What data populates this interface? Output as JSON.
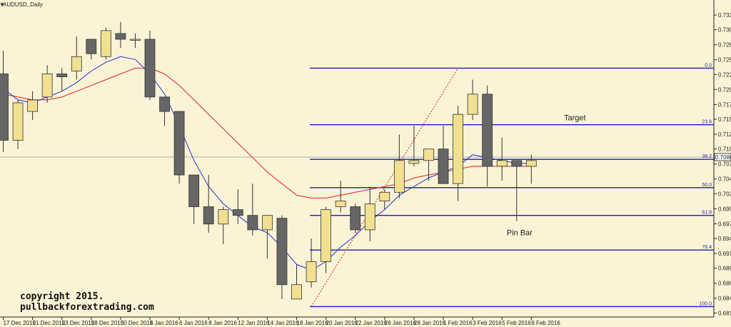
{
  "chart_data": {
    "type": "candlestick",
    "title": "AUDUSD,,Daily",
    "symbol_menu_marker": "▼",
    "ylim": [
      0.6809,
      0.7358
    ],
    "y_ticks": [
      0.7332,
      0.73065,
      0.72805,
      0.72545,
      0.7229,
      0.7203,
      0.7177,
      0.71515,
      0.71255,
      0.71,
      0.7074,
      0.7048,
      0.70225,
      0.69965,
      0.69705,
      0.6945,
      0.6919,
      0.68935,
      0.68675,
      0.68415,
      0.6816
    ],
    "y_tick_labels": [
      "0.73320",
      "0.73065",
      "0.72805",
      "0.72545",
      "0.72290",
      "0.72030",
      "0.71770",
      "0.71515",
      "0.71255",
      "0.71000",
      "0.70740",
      "0.70480",
      "0.70225",
      "0.69965",
      "0.69705",
      "0.69450",
      "0.69190",
      "0.68935",
      "0.68675",
      "0.68415",
      "0.68160"
    ],
    "current_price": 0.7086,
    "current_price_label": "0.70860",
    "x_tick_labels": [
      {
        "bar": 0,
        "label": "17 Dec 2015"
      },
      {
        "bar": 2,
        "label": "21 Dec 2015"
      },
      {
        "bar": 4,
        "label": "23 Dec 2015"
      },
      {
        "bar": 6,
        "label": "28 Dec 2015"
      },
      {
        "bar": 8,
        "label": "30 Dec 2015"
      },
      {
        "bar": 10,
        "label": "4 Jan 2016"
      },
      {
        "bar": 12,
        "label": "6 Jan 2016"
      },
      {
        "bar": 14,
        "label": "8 Jan 2016"
      },
      {
        "bar": 16,
        "label": "12 Jan 2016"
      },
      {
        "bar": 18,
        "label": "14 Jan 2016"
      },
      {
        "bar": 20,
        "label": "18 Jan 2016"
      },
      {
        "bar": 22,
        "label": "20 Jan 2016"
      },
      {
        "bar": 24,
        "label": "22 Jan 2016"
      },
      {
        "bar": 26,
        "label": "26 Jan 2016"
      },
      {
        "bar": 28,
        "label": "28 Jan 2016"
      },
      {
        "bar": 30,
        "label": "1 Feb 2016"
      },
      {
        "bar": 32,
        "label": "3 Feb 2016"
      },
      {
        "bar": 34,
        "label": "5 Feb 2016"
      },
      {
        "bar": 36,
        "label": "9 Feb 2016"
      }
    ],
    "candles": [
      {
        "o": 0.723,
        "h": 0.727,
        "l": 0.7095,
        "c": 0.7115
      },
      {
        "o": 0.7115,
        "h": 0.7185,
        "l": 0.71,
        "c": 0.718
      },
      {
        "o": 0.7165,
        "h": 0.72,
        "l": 0.715,
        "c": 0.7185
      },
      {
        "o": 0.719,
        "h": 0.7245,
        "l": 0.718,
        "c": 0.723
      },
      {
        "o": 0.723,
        "h": 0.724,
        "l": 0.72,
        "c": 0.7225
      },
      {
        "o": 0.7235,
        "h": 0.7295,
        "l": 0.722,
        "c": 0.726
      },
      {
        "o": 0.729,
        "h": 0.729,
        "l": 0.7255,
        "c": 0.7265
      },
      {
        "o": 0.726,
        "h": 0.731,
        "l": 0.7255,
        "c": 0.7305
      },
      {
        "o": 0.73,
        "h": 0.732,
        "l": 0.7275,
        "c": 0.729
      },
      {
        "o": 0.729,
        "h": 0.73,
        "l": 0.7275,
        "c": 0.729
      },
      {
        "o": 0.729,
        "h": 0.7305,
        "l": 0.7185,
        "c": 0.719
      },
      {
        "o": 0.719,
        "h": 0.719,
        "l": 0.714,
        "c": 0.7165
      },
      {
        "o": 0.7165,
        "h": 0.7165,
        "l": 0.704,
        "c": 0.7055
      },
      {
        "o": 0.7055,
        "h": 0.7055,
        "l": 0.697,
        "c": 0.7
      },
      {
        "o": 0.7,
        "h": 0.7055,
        "l": 0.6955,
        "c": 0.697
      },
      {
        "o": 0.697,
        "h": 0.7,
        "l": 0.6935,
        "c": 0.6995
      },
      {
        "o": 0.6995,
        "h": 0.703,
        "l": 0.697,
        "c": 0.6985
      },
      {
        "o": 0.6985,
        "h": 0.704,
        "l": 0.695,
        "c": 0.696
      },
      {
        "o": 0.696,
        "h": 0.6985,
        "l": 0.691,
        "c": 0.6985
      },
      {
        "o": 0.698,
        "h": 0.6985,
        "l": 0.684,
        "c": 0.6865
      },
      {
        "o": 0.684,
        "h": 0.69,
        "l": 0.684,
        "c": 0.6865
      },
      {
        "o": 0.687,
        "h": 0.6945,
        "l": 0.686,
        "c": 0.6905
      },
      {
        "o": 0.6905,
        "h": 0.7,
        "l": 0.6885,
        "c": 0.6995
      },
      {
        "o": 0.7,
        "h": 0.7045,
        "l": 0.699,
        "c": 0.701
      },
      {
        "o": 0.7,
        "h": 0.7005,
        "l": 0.6955,
        "c": 0.696
      },
      {
        "o": 0.696,
        "h": 0.7035,
        "l": 0.694,
        "c": 0.7005
      },
      {
        "o": 0.701,
        "h": 0.703,
        "l": 0.6995,
        "c": 0.7025
      },
      {
        "o": 0.7025,
        "h": 0.7125,
        "l": 0.7015,
        "c": 0.708
      },
      {
        "o": 0.7075,
        "h": 0.714,
        "l": 0.707,
        "c": 0.708
      },
      {
        "o": 0.708,
        "h": 0.71,
        "l": 0.7045,
        "c": 0.71
      },
      {
        "o": 0.71,
        "h": 0.714,
        "l": 0.704,
        "c": 0.704
      },
      {
        "o": 0.704,
        "h": 0.7175,
        "l": 0.701,
        "c": 0.716
      },
      {
        "o": 0.716,
        "h": 0.722,
        "l": 0.715,
        "c": 0.7195
      },
      {
        "o": 0.7195,
        "h": 0.721,
        "l": 0.7035,
        "c": 0.707
      },
      {
        "o": 0.707,
        "h": 0.712,
        "l": 0.7045,
        "c": 0.708
      },
      {
        "o": 0.708,
        "h": 0.708,
        "l": 0.6975,
        "c": 0.707
      },
      {
        "o": 0.707,
        "h": 0.709,
        "l": 0.704,
        "c": 0.708
      }
    ],
    "ma_fast": [
      0.7205,
      0.7185,
      0.718,
      0.719,
      0.72,
      0.7215,
      0.7235,
      0.725,
      0.726,
      0.7255,
      0.723,
      0.7195,
      0.714,
      0.708,
      0.7035,
      0.7005,
      0.6985,
      0.6965,
      0.6955,
      0.693,
      0.69,
      0.689,
      0.6905,
      0.693,
      0.695,
      0.6975,
      0.6995,
      0.702,
      0.7035,
      0.705,
      0.706,
      0.707,
      0.709,
      0.7085,
      0.708,
      0.7075,
      0.7075
    ],
    "ma_slow": [
      0.7195,
      0.719,
      0.7185,
      0.7185,
      0.719,
      0.72,
      0.721,
      0.722,
      0.723,
      0.724,
      0.724,
      0.723,
      0.721,
      0.7185,
      0.716,
      0.7135,
      0.711,
      0.7085,
      0.706,
      0.704,
      0.702,
      0.7015,
      0.7015,
      0.702,
      0.7025,
      0.703,
      0.7035,
      0.704,
      0.705,
      0.7055,
      0.706,
      0.7065,
      0.707,
      0.707,
      0.707,
      0.707,
      0.707
    ],
    "ma_fast_color": "#2233cc",
    "ma_slow_color": "#dd2222",
    "bull_color": "#f0e090",
    "bear_color": "#666666",
    "fib_levels": [
      {
        "label": "0.0",
        "price": 0.724
      },
      {
        "label": "23.6",
        "price": 0.7142
      },
      {
        "label": "38.2",
        "price": 0.7082
      },
      {
        "label": "50.0",
        "price": 0.7033
      },
      {
        "label": "61.8",
        "price": 0.6985
      },
      {
        "label": "76.4",
        "price": 0.6925
      },
      {
        "label": "100.0",
        "price": 0.6827
      }
    ],
    "fib_color": "#1a1ad0",
    "fib_start_bar": 21,
    "fib_trend": {
      "from_bar": 21,
      "from_price": 0.6827,
      "to_bar": 31,
      "to_price": 0.724
    },
    "annotations": {
      "target": "Target",
      "pin_bar": "Pin Bar"
    },
    "pin_bar_index": 35,
    "watermark": {
      "line1": "copyright 2015.",
      "line2": "pullbackforextrading.com"
    }
  }
}
